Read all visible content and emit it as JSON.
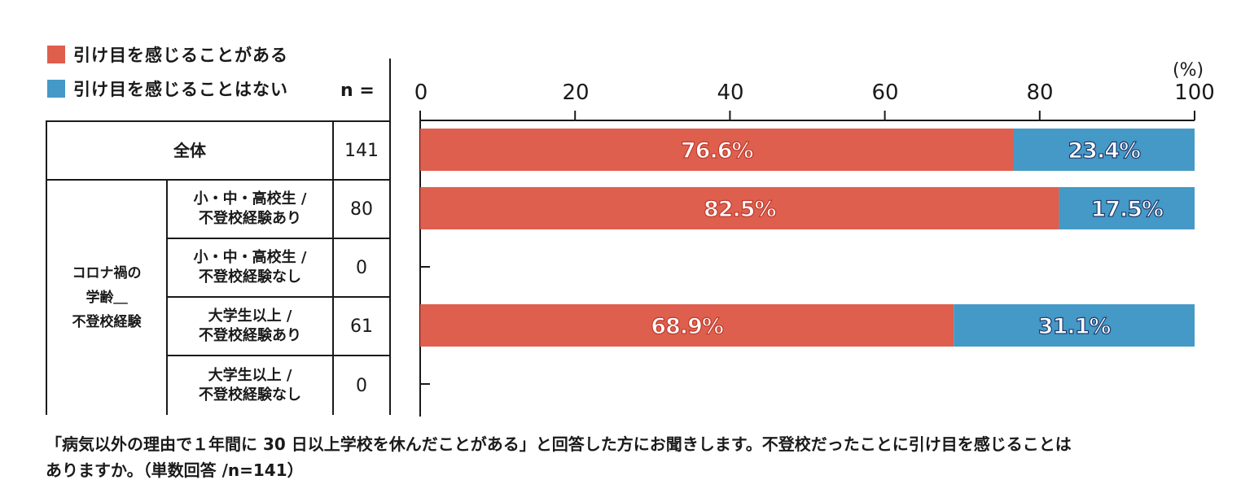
{
  "legend": [
    {
      "label": "引け目を感じることがある",
      "color": "#de5f4d"
    },
    {
      "label": "引け目を感じることはない",
      "color": "#4499c6"
    }
  ],
  "n_header": "n =",
  "axis": {
    "unit": "(%)",
    "ticks": [
      "0",
      "20",
      "40",
      "60",
      "80",
      "100"
    ]
  },
  "table": {
    "total_label": "全体",
    "group_label": "コロナ禍の\n学齢＿\n不登校経験",
    "rows": [
      {
        "label": "全体",
        "n": "141"
      },
      {
        "label": "小・中・高校生 /\n不登校経験あり",
        "n": "80"
      },
      {
        "label": "小・中・高校生 /\n不登校経験なし",
        "n": "0"
      },
      {
        "label": "大学生以上 /\n不登校経験あり",
        "n": "61"
      },
      {
        "label": "大学生以上 /\n不登校経験なし",
        "n": "0"
      }
    ]
  },
  "chart_data": {
    "type": "bar",
    "orientation": "horizontal",
    "stacked": true,
    "xlim": [
      0,
      100
    ],
    "xlabel": "(%)",
    "categories": [
      "全体",
      "小・中・高校生 / 不登校経験あり",
      "小・中・高校生 / 不登校経験なし",
      "大学生以上 / 不登校経験あり",
      "大学生以上 / 不登校経験なし"
    ],
    "series": [
      {
        "name": "引け目を感じることがある",
        "color": "#de5f4d",
        "values": [
          76.6,
          82.5,
          null,
          68.9,
          null
        ],
        "labels": [
          "76.6%",
          "82.5%",
          "",
          "68.9%",
          ""
        ]
      },
      {
        "name": "引け目を感じることはない",
        "color": "#4499c6",
        "values": [
          23.4,
          17.5,
          null,
          31.1,
          null
        ],
        "labels": [
          "23.4%",
          "17.5%",
          "",
          "31.1%",
          ""
        ]
      }
    ],
    "empty_marker": "–"
  },
  "footnote": {
    "line1": "「病気以外の理由で１年間に 30 日以上学校を休んだことがある」と回答した方にお聞きします。不登校だったことに引け目を感じることは",
    "line2": "ありますか。（単数回答 /n=141）"
  }
}
